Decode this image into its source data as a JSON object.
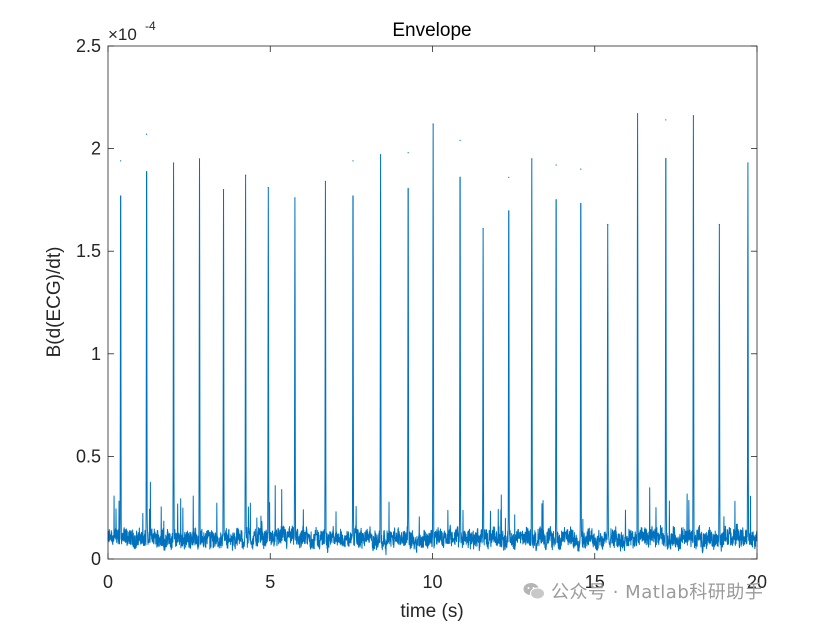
{
  "chart_data": {
    "type": "line",
    "title": "Envelope",
    "xlabel": "time (s)",
    "ylabel": "B(d(ECG)/dt)",
    "y_exponent_label": "-4",
    "y_multiplier_prefix": "×10",
    "xlim": [
      0,
      20
    ],
    "ylim": [
      0,
      2.5
    ],
    "xticks": [
      0,
      5,
      10,
      15,
      20
    ],
    "xtick_labels": [
      "0",
      "5",
      "10",
      "15",
      "20"
    ],
    "yticks": [
      0,
      0.5,
      1,
      1.5,
      2,
      2.5
    ],
    "ytick_labels": [
      "0",
      "0.5",
      "1",
      "1.5",
      "2",
      "2.5"
    ],
    "grid": false,
    "line_color": "#0072BD",
    "series": [
      {
        "peaks": [
          {
            "t": 0.39,
            "v": 1.94
          },
          {
            "t": 1.19,
            "v": 2.07
          },
          {
            "t": 2.02,
            "v": 1.93
          },
          {
            "t": 2.82,
            "v": 1.95
          },
          {
            "t": 3.56,
            "v": 1.8
          },
          {
            "t": 4.24,
            "v": 1.87
          },
          {
            "t": 4.94,
            "v": 1.81
          },
          {
            "t": 5.76,
            "v": 1.76
          },
          {
            "t": 6.7,
            "v": 1.84
          },
          {
            "t": 7.55,
            "v": 1.94
          },
          {
            "t": 8.4,
            "v": 1.97
          },
          {
            "t": 9.25,
            "v": 1.98
          },
          {
            "t": 10.02,
            "v": 2.12
          },
          {
            "t": 10.85,
            "v": 2.04
          },
          {
            "t": 11.56,
            "v": 1.61
          },
          {
            "t": 12.35,
            "v": 1.86
          },
          {
            "t": 13.06,
            "v": 1.95
          },
          {
            "t": 13.81,
            "v": 1.92
          },
          {
            "t": 14.57,
            "v": 1.9
          },
          {
            "t": 15.4,
            "v": 1.63
          },
          {
            "t": 16.32,
            "v": 2.17
          },
          {
            "t": 17.19,
            "v": 2.14
          },
          {
            "t": 18.04,
            "v": 2.16
          },
          {
            "t": 18.84,
            "v": 1.63
          },
          {
            "t": 19.72,
            "v": 1.93
          }
        ],
        "baseline_mean": 0.1,
        "baseline_max": 0.35
      }
    ]
  },
  "watermark": {
    "text": "公众号 · Matlab科研助手"
  }
}
